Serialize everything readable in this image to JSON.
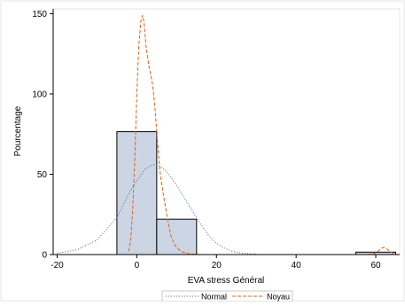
{
  "chart_data": {
    "type": "histogram",
    "title": "",
    "xlabel": "EVA stress Général",
    "ylabel": "Pourcentage",
    "xlim": [
      -21,
      66
    ],
    "ylim": [
      0,
      153
    ],
    "x_ticks": [
      -20,
      0,
      20,
      40,
      60
    ],
    "y_ticks": [
      0,
      50,
      100,
      150
    ],
    "grid": false,
    "legend_position": "bottom",
    "bars": [
      {
        "x0": -5,
        "x1": 5,
        "value": 76.5
      },
      {
        "x0": 5,
        "x1": 15,
        "value": 22
      },
      {
        "x0": 55,
        "x1": 65,
        "value": 1.5
      }
    ],
    "bar_fill": "#cbd5e4",
    "bar_stroke": "#000000",
    "series": [
      {
        "name": "Normal",
        "style": "dotted",
        "color": "#4a5f80",
        "points": [
          [
            -20,
            0.8
          ],
          [
            -15,
            3
          ],
          [
            -10,
            9
          ],
          [
            -5,
            23
          ],
          [
            -2,
            38
          ],
          [
            0,
            46
          ],
          [
            2,
            53
          ],
          [
            4,
            56
          ],
          [
            6,
            55
          ],
          [
            8,
            50
          ],
          [
            10,
            43
          ],
          [
            12,
            35
          ],
          [
            14,
            27
          ],
          [
            16,
            19
          ],
          [
            18,
            12
          ],
          [
            20,
            7
          ],
          [
            22,
            4
          ],
          [
            24,
            2
          ],
          [
            26,
            1
          ],
          [
            28,
            0.5
          ],
          [
            30,
            0.2
          ],
          [
            32,
            0
          ]
        ]
      },
      {
        "name": "Noyau",
        "style": "dashed",
        "color": "#e0631a",
        "points": [
          [
            -2,
            2
          ],
          [
            -1.5,
            10
          ],
          [
            -1,
            30
          ],
          [
            -0.5,
            60
          ],
          [
            0,
            100
          ],
          [
            0.5,
            130
          ],
          [
            1,
            145
          ],
          [
            1.4,
            149
          ],
          [
            1.8,
            145
          ],
          [
            2.3,
            130
          ],
          [
            3,
            118
          ],
          [
            3.5,
            112
          ],
          [
            4,
            105
          ],
          [
            4.6,
            90
          ],
          [
            5.2,
            70
          ],
          [
            5.8,
            52
          ],
          [
            6.5,
            40
          ],
          [
            7.5,
            25
          ],
          [
            8.5,
            12
          ],
          [
            9.5,
            6
          ],
          [
            11,
            2
          ],
          [
            13,
            0.5
          ],
          [
            16,
            0
          ],
          [
            30,
            0
          ],
          [
            50,
            0
          ],
          [
            58,
            0
          ],
          [
            59.5,
            0.5
          ],
          [
            60.5,
            2
          ],
          [
            61.5,
            4
          ],
          [
            62,
            4.5
          ],
          [
            62.5,
            4
          ],
          [
            63.5,
            2
          ],
          [
            64.5,
            0.5
          ],
          [
            65,
            0
          ]
        ]
      }
    ]
  },
  "legend": {
    "normal_label": "Normal",
    "noyau_label": "Noyau"
  }
}
